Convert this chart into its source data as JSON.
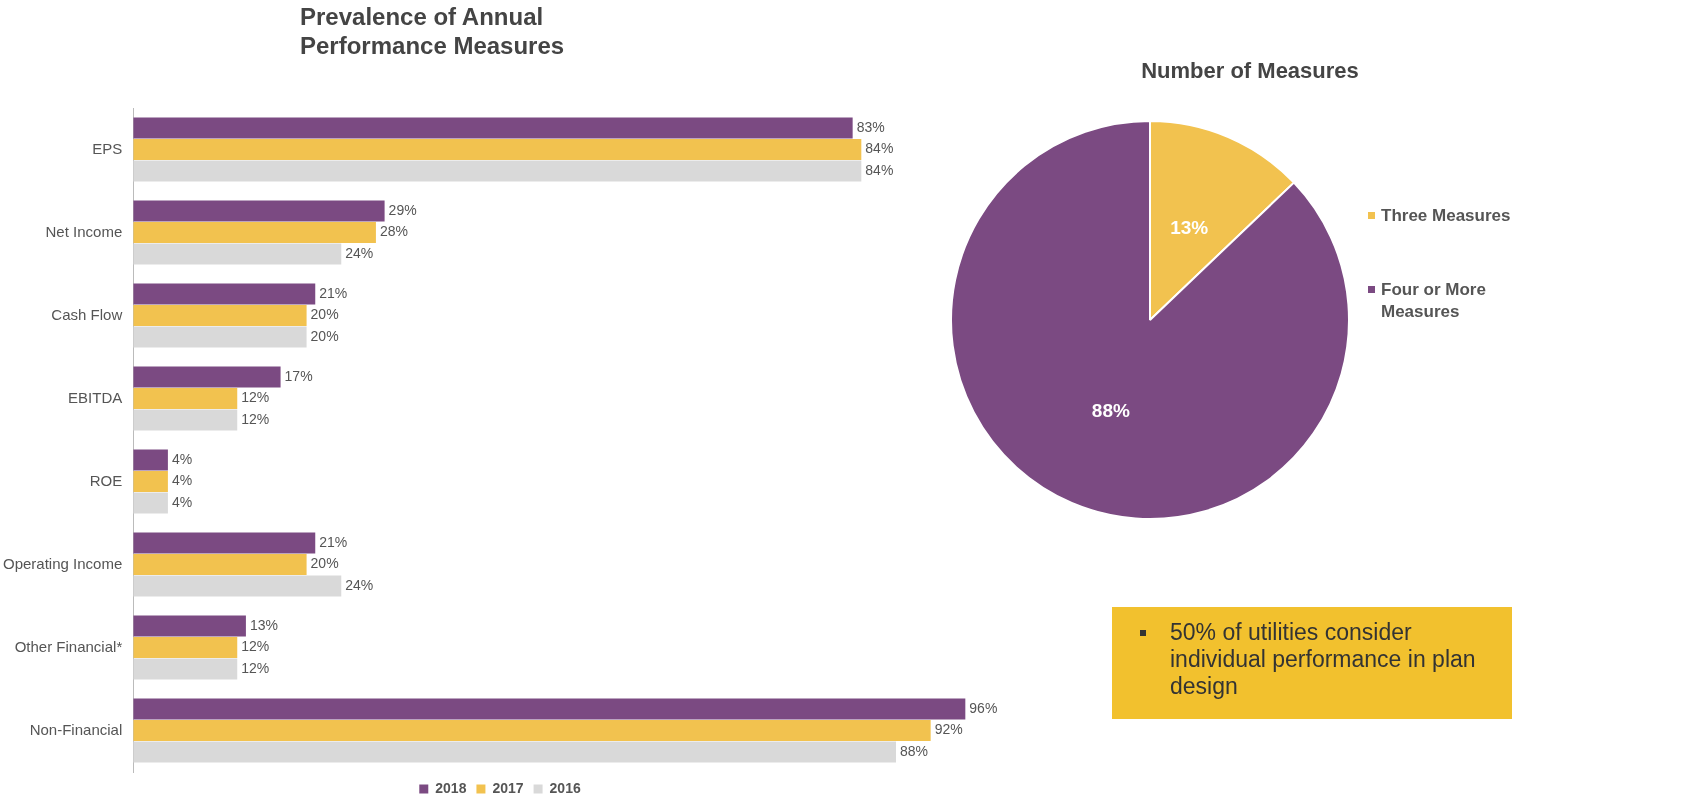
{
  "chart_data": [
    {
      "type": "bar",
      "orientation": "horizontal",
      "title": "Prevalence of Annual Performance Measures",
      "categories": [
        "EPS",
        "Net Income",
        "Cash Flow",
        "EBITDA",
        "ROE",
        "Operating Income",
        "Other Financial*",
        "Non-Financial"
      ],
      "series": [
        {
          "name": "2018",
          "color": "#7b4a82",
          "values": [
            83,
            29,
            21,
            17,
            4,
            21,
            13,
            96
          ],
          "value_labels": [
            "83%",
            "29%",
            "21%",
            "17%",
            "4%",
            "21%",
            "13%",
            "96%"
          ]
        },
        {
          "name": "2017",
          "color": "#f2c24f",
          "values": [
            84,
            28,
            20,
            12,
            4,
            20,
            12,
            92
          ],
          "value_labels": [
            "84%",
            "28%",
            "20%",
            "12%",
            "4%",
            "20%",
            "12%",
            "92%"
          ]
        },
        {
          "name": "2016",
          "color": "#d9d9d9",
          "values": [
            84,
            24,
            20,
            12,
            4,
            24,
            12,
            88
          ],
          "value_labels": [
            "84%",
            "24%",
            "20%",
            "12%",
            "4%",
            "24%",
            "12%",
            "88%"
          ]
        }
      ],
      "legend": "bottom",
      "grid": false,
      "tick_labels": "y"
    },
    {
      "type": "pie",
      "title": "Number of Measures",
      "categories": [
        "Three Measures",
        "Four or More Measures"
      ],
      "values": [
        13,
        88
      ],
      "colors": [
        "#f2c24f",
        "#7b4a82"
      ],
      "value_labels": [
        "13%",
        "88%"
      ],
      "legend": "right"
    },
    {
      "type": "other",
      "annotations": [
        "50% of utilities consider individual performance in plan design"
      ]
    }
  ]
}
